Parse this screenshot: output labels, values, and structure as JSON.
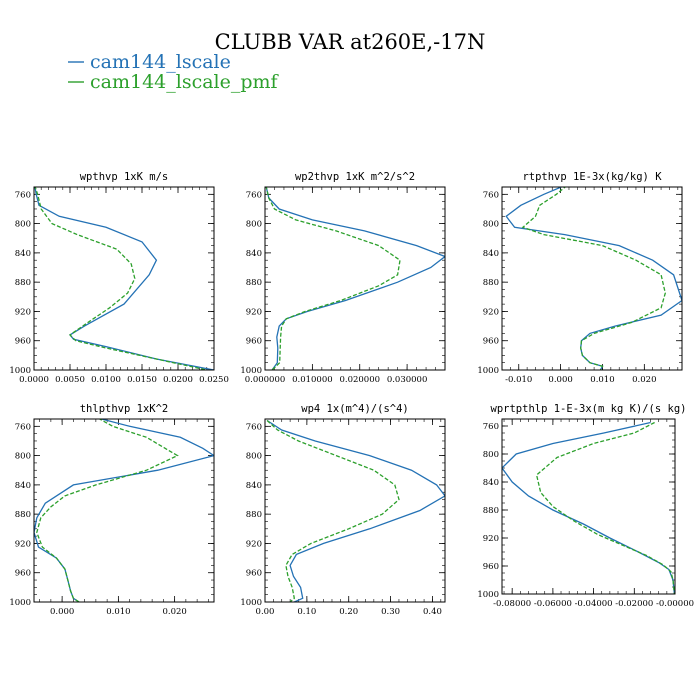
{
  "title": "CLUBB VAR at260E,-17N",
  "legend": {
    "placement": "top-left",
    "entries": [
      {
        "label": "cam144_lscale",
        "color": "#2472b5",
        "dash": "solid"
      },
      {
        "label": "cam144_lscale_pmf",
        "color": "#2ca02c",
        "dash": "dashed"
      }
    ]
  },
  "chart_data": [
    {
      "type": "line",
      "title": "wpthvp  1xK m/s",
      "xlim": [
        0,
        0.025
      ],
      "ylim": [
        1000,
        750
      ],
      "x_ticks": [
        0,
        0.005,
        0.01,
        0.015,
        0.02,
        0.025
      ],
      "x_tick_labels": [
        "0.0000",
        "0.0050",
        "0.0100",
        "0.0150",
        "0.0200",
        "0.0250"
      ],
      "y_ticks": [
        760,
        800,
        840,
        880,
        920,
        960,
        1000
      ],
      "y_tick_labels": [
        "760",
        "800",
        "840",
        "880",
        "920",
        "960",
        "1000"
      ],
      "series": [
        {
          "name": "cam144_lscale",
          "x": [
            0.0001,
            0.0003,
            0.0007,
            0.0035,
            0.01,
            0.015,
            0.017,
            0.016,
            0.0125,
            0.007,
            0.005,
            0.0055,
            0.01,
            0.017,
            0.025
          ],
          "y": [
            748,
            760,
            775,
            790,
            805,
            825,
            850,
            870,
            910,
            940,
            952,
            958,
            968,
            985,
            1000
          ]
        },
        {
          "name": "cam144_lscale_pmf",
          "x": [
            0.0001,
            0.0005,
            0.001,
            0.0025,
            0.006,
            0.0115,
            0.0135,
            0.014,
            0.013,
            0.0105,
            0.0075,
            0.005,
            0.0058,
            0.01,
            0.017,
            0.024
          ],
          "y": [
            748,
            760,
            780,
            800,
            815,
            835,
            855,
            875,
            895,
            915,
            935,
            952,
            960,
            970,
            985,
            1000
          ]
        }
      ]
    },
    {
      "type": "line",
      "title": "wp2thvp  1xK m^2/s^2",
      "xlim": [
        0,
        0.038
      ],
      "ylim": [
        1000,
        750
      ],
      "x_ticks": [
        0,
        0.01,
        0.02,
        0.03
      ],
      "x_tick_labels": [
        "0.000000",
        "0.010000",
        "0.020000",
        "0.030000"
      ],
      "y_ticks": [
        760,
        800,
        840,
        880,
        920,
        960,
        1000
      ],
      "y_tick_labels": [
        "760",
        "800",
        "840",
        "880",
        "920",
        "960",
        "1000"
      ],
      "series": [
        {
          "name": "cam144_lscale",
          "x": [
            0.0002,
            0.0008,
            0.003,
            0.01,
            0.021,
            0.032,
            0.038,
            0.035,
            0.028,
            0.017,
            0.009,
            0.0045,
            0.003,
            0.0025,
            0.0027,
            0.0026,
            0.0015
          ],
          "y": [
            748,
            765,
            780,
            795,
            810,
            830,
            845,
            860,
            880,
            905,
            920,
            930,
            940,
            955,
            970,
            990,
            1000
          ]
        },
        {
          "name": "cam144_lscale_pmf",
          "x": [
            0.0002,
            0.0008,
            0.002,
            0.0065,
            0.015,
            0.024,
            0.0285,
            0.028,
            0.024,
            0.016,
            0.0085,
            0.0045,
            0.0035,
            0.0033,
            0.0032,
            0.0031,
            0.0015
          ],
          "y": [
            748,
            765,
            780,
            795,
            810,
            830,
            850,
            870,
            885,
            905,
            920,
            930,
            940,
            955,
            970,
            990,
            1000
          ]
        }
      ]
    },
    {
      "type": "line",
      "title": "rtpthvp  1E-3x(kg/kg) K",
      "xlim": [
        -0.014,
        0.029
      ],
      "ylim": [
        1000,
        750
      ],
      "x_ticks": [
        -0.01,
        0,
        0.01,
        0.02
      ],
      "x_tick_labels": [
        "-0.010",
        "0.000",
        "0.010",
        "0.020"
      ],
      "y_ticks": [
        760,
        800,
        840,
        880,
        920,
        960,
        1000
      ],
      "y_tick_labels": [
        "760",
        "800",
        "840",
        "880",
        "920",
        "960",
        "1000"
      ],
      "series": [
        {
          "name": "cam144_lscale",
          "x": [
            0.001,
            -0.004,
            -0.0095,
            -0.013,
            -0.011,
            0.001,
            0.014,
            0.022,
            0.027,
            0.029,
            0.024,
            0.013,
            0.007,
            0.005,
            0.0048,
            0.0052,
            0.007,
            0.01,
            0.0095
          ],
          "y": [
            748,
            760,
            775,
            790,
            805,
            815,
            830,
            850,
            870,
            905,
            925,
            940,
            950,
            960,
            970,
            980,
            990,
            995,
            1000
          ]
        },
        {
          "name": "cam144_lscale_pmf",
          "x": [
            0.0015,
            -0.001,
            -0.005,
            -0.006,
            -0.009,
            -0.004,
            0.01,
            0.018,
            0.024,
            0.025,
            0.024,
            0.017,
            0.008,
            0.005,
            0.0048,
            0.0052,
            0.007,
            0.01,
            0.0095
          ],
          "y": [
            748,
            760,
            775,
            790,
            805,
            815,
            830,
            850,
            870,
            895,
            915,
            935,
            950,
            960,
            970,
            980,
            990,
            995,
            1000
          ]
        }
      ]
    },
    {
      "type": "line",
      "title": "thlpthvp  1xK^2",
      "xlim": [
        -0.005,
        0.027
      ],
      "ylim": [
        1000,
        750
      ],
      "x_ticks": [
        0,
        0.01,
        0.02
      ],
      "x_tick_labels": [
        "0.000",
        "0.010",
        "0.020"
      ],
      "y_ticks": [
        760,
        800,
        840,
        880,
        920,
        960,
        1000
      ],
      "y_tick_labels": [
        "760",
        "800",
        "840",
        "880",
        "920",
        "960",
        "1000"
      ],
      "series": [
        {
          "name": "cam144_lscale",
          "x": [
            0.0045,
            0.012,
            0.021,
            0.025,
            0.027,
            0.017,
            0.002,
            -0.003,
            -0.0045,
            -0.005,
            -0.0042,
            -0.001,
            0.0005,
            0.001,
            0.0015,
            0.002,
            0.003
          ],
          "y": [
            745,
            760,
            775,
            790,
            800,
            820,
            840,
            865,
            885,
            905,
            925,
            940,
            955,
            970,
            985,
            995,
            1000
          ]
        },
        {
          "name": "cam144_lscale_pmf",
          "x": [
            0.0055,
            0.009,
            0.015,
            0.0205,
            0.015,
            0.006,
            0.0005,
            -0.002,
            -0.0038,
            -0.0045,
            -0.0035,
            -0.001,
            0.0005,
            0.001,
            0.0015,
            0.002,
            0.003
          ],
          "y": [
            745,
            760,
            775,
            800,
            820,
            840,
            855,
            870,
            885,
            905,
            925,
            940,
            955,
            970,
            985,
            995,
            1000
          ]
        }
      ]
    },
    {
      "type": "line",
      "title": "wp4  1x(m^4)/(s^4)",
      "xlim": [
        0,
        0.43
      ],
      "ylim": [
        1000,
        750
      ],
      "x_ticks": [
        0,
        0.1,
        0.2,
        0.3,
        0.4
      ],
      "x_tick_labels": [
        "0.00",
        "0.10",
        "0.20",
        "0.30",
        "0.40"
      ],
      "y_ticks": [
        760,
        800,
        840,
        880,
        920,
        960,
        1000
      ],
      "y_tick_labels": [
        "760",
        "800",
        "840",
        "880",
        "920",
        "960",
        "1000"
      ],
      "series": [
        {
          "name": "cam144_lscale",
          "x": [
            0.005,
            0.04,
            0.12,
            0.25,
            0.35,
            0.41,
            0.43,
            0.37,
            0.25,
            0.14,
            0.075,
            0.06,
            0.068,
            0.085,
            0.09,
            0.07,
            0.045
          ],
          "y": [
            752,
            765,
            780,
            800,
            820,
            840,
            855,
            875,
            900,
            920,
            935,
            950,
            965,
            980,
            995,
            1000,
            1002
          ]
        },
        {
          "name": "cam144_lscale_pmf",
          "x": [
            0.005,
            0.03,
            0.08,
            0.17,
            0.26,
            0.31,
            0.32,
            0.28,
            0.2,
            0.11,
            0.065,
            0.05,
            0.055,
            0.065,
            0.07,
            0.06,
            0.045
          ],
          "y": [
            752,
            765,
            780,
            800,
            820,
            840,
            860,
            880,
            900,
            920,
            935,
            950,
            965,
            980,
            995,
            1000,
            1002
          ]
        }
      ]
    },
    {
      "type": "line",
      "title": "wprtpthlp  1-E-3x(m kg K)/(s kg)",
      "xlim": [
        -0.085,
        0
      ],
      "ylim": [
        1000,
        750
      ],
      "x_ticks": [
        -0.08,
        -0.06,
        -0.04,
        -0.02,
        0
      ],
      "x_tick_labels": [
        "-0.08000",
        "-0.06000",
        "-0.04000",
        "-0.02000",
        "-0.00000"
      ],
      "y_ticks": [
        760,
        800,
        840,
        880,
        920,
        960,
        1000
      ],
      "y_tick_labels": [
        "760",
        "800",
        "840",
        "880",
        "920",
        "960",
        "1000"
      ],
      "series": [
        {
          "name": "cam144_lscale",
          "x": [
            -0.012,
            -0.035,
            -0.06,
            -0.078,
            -0.085,
            -0.08,
            -0.072,
            -0.06,
            -0.045,
            -0.032,
            -0.018,
            -0.008,
            -0.003,
            -0.001,
            -0.0003
          ],
          "y": [
            755,
            770,
            785,
            800,
            820,
            840,
            860,
            880,
            900,
            920,
            940,
            955,
            965,
            980,
            1000
          ]
        },
        {
          "name": "cam144_lscale_pmf",
          "x": [
            -0.01,
            -0.02,
            -0.04,
            -0.058,
            -0.068,
            -0.066,
            -0.06,
            -0.05,
            -0.038,
            -0.026,
            -0.014,
            -0.006,
            -0.002,
            -0.001,
            -0.0003
          ],
          "y": [
            755,
            770,
            785,
            805,
            830,
            855,
            875,
            895,
            915,
            930,
            945,
            958,
            968,
            980,
            1000
          ]
        }
      ]
    }
  ]
}
